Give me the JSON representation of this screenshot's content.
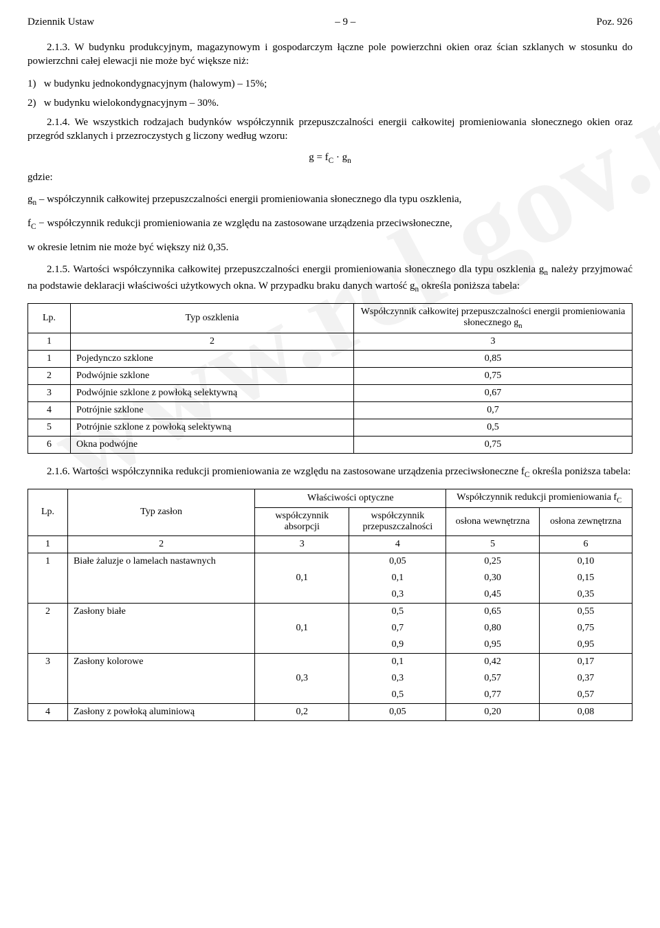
{
  "header": {
    "left": "Dziennik Ustaw",
    "center": "– 9 –",
    "right": "Poz. 926"
  },
  "p213": "2.1.3. W budynku produkcyjnym, magazynowym i gospodarczym łączne pole powierzchni okien oraz ścian szklanych w stosunku do powierzchni całej elewacji nie może być większe niż:",
  "li1": "1)   w budynku jednokondygnacyjnym (halowym) – 15%;",
  "li2": "2)   w budynku wielokondygnacyjnym – 30%.",
  "p214": "2.1.4. We wszystkich rodzajach budynków współczynnik przepuszczalności energii całkowitej promieniowania słonecznego okien oraz przegród szklanych i przezroczystych g liczony według wzoru:",
  "formula_pre": "g = f",
  "formula_sub1": "C",
  "formula_mid": " · g",
  "formula_sub2": "n",
  "gdzie": "gdzie:",
  "def_gn_pre": "g",
  "def_gn_sub": "n",
  "def_gn_txt": " – współczynnik całkowitej przepuszczalności energii promieniowania słonecznego dla typu oszklenia,",
  "def_fc_pre": "f",
  "def_fc_sub": "C",
  "def_fc_txt": " − współczynnik redukcji promieniowania ze względu na zastosowane urządzenia przeciwsłoneczne,",
  "def_rest": "w okresie letnim nie może być większy niż 0,35.",
  "p215_a": "2.1.5. Wartości współczynnika całkowitej przepuszczalności energii promieniowania słonecznego dla typu oszklenia g",
  "p215_sub": "n",
  "p215_b": " należy przyjmować na podstawie deklaracji właściwości użytkowych okna. W przypadku braku danych wartość g",
  "p215_sub2": "n",
  "p215_c": " określa poniższa tabela:",
  "t1": {
    "h_lp": "Lp.",
    "h_typ": "Typ oszklenia",
    "h_g_a": "Współczynnik całkowitej przepuszczalności energii promieniowania słonecznego g",
    "h_g_sub": "n",
    "num": [
      "1",
      "2",
      "3"
    ],
    "rows": [
      {
        "lp": "1",
        "typ": "Pojedynczo szklone",
        "g": "0,85"
      },
      {
        "lp": "2",
        "typ": "Podwójnie szklone",
        "g": "0,75"
      },
      {
        "lp": "3",
        "typ": "Podwójnie szklone z powłoką selektywną",
        "g": "0,67"
      },
      {
        "lp": "4",
        "typ": "Potrójnie szklone",
        "g": "0,7"
      },
      {
        "lp": "5",
        "typ": "Potrójnie szklone z powłoką selektywną",
        "g": "0,5"
      },
      {
        "lp": "6",
        "typ": "Okna podwójne",
        "g": "0,75"
      }
    ]
  },
  "p216_a": "2.1.6. Wartości współczynnika redukcji promieniowania ze względu na zastosowane urządzenia przeciwsłoneczne f",
  "p216_sub": "C",
  "p216_b": " określa poniższa tabela:",
  "t2": {
    "h_lp": "Lp.",
    "h_typ": "Typ zasłon",
    "h_opt": "Właściwości optyczne",
    "h_red_a": "Współczynnik redukcji promieniowania f",
    "h_red_sub": "C",
    "h_abs": "współczynnik absorpcji",
    "h_prz": "współczynnik przepuszczalności",
    "h_wew": "osłona wewnętrzna",
    "h_zew": "osłona zewnętrzna",
    "num": [
      "1",
      "2",
      "3",
      "4",
      "5",
      "6"
    ],
    "rows": [
      {
        "lp": "1",
        "typ": "Białe żaluzje o lamelach nastawnych",
        "abs": "0,1",
        "sub": [
          {
            "p": "0,05",
            "w": "0,25",
            "z": "0,10"
          },
          {
            "p": "0,1",
            "w": "0,30",
            "z": "0,15"
          },
          {
            "p": "0,3",
            "w": "0,45",
            "z": "0,35"
          }
        ]
      },
      {
        "lp": "2",
        "typ": "Zasłony białe",
        "abs": "0,1",
        "sub": [
          {
            "p": "0,5",
            "w": "0,65",
            "z": "0,55"
          },
          {
            "p": "0,7",
            "w": "0,80",
            "z": "0,75"
          },
          {
            "p": "0,9",
            "w": "0,95",
            "z": "0,95"
          }
        ]
      },
      {
        "lp": "3",
        "typ": "Zasłony kolorowe",
        "abs": "0,3",
        "sub": [
          {
            "p": "0,1",
            "w": "0,42",
            "z": "0,17"
          },
          {
            "p": "0,3",
            "w": "0,57",
            "z": "0,37"
          },
          {
            "p": "0,5",
            "w": "0,77",
            "z": "0,57"
          }
        ]
      },
      {
        "lp": "4",
        "typ": "Zasłony z powłoką aluminiową",
        "abs": "0,2",
        "sub": [
          {
            "p": "0,05",
            "w": "0,20",
            "z": "0,08"
          }
        ]
      }
    ]
  },
  "watermark": "www.rcl.gov.pl"
}
